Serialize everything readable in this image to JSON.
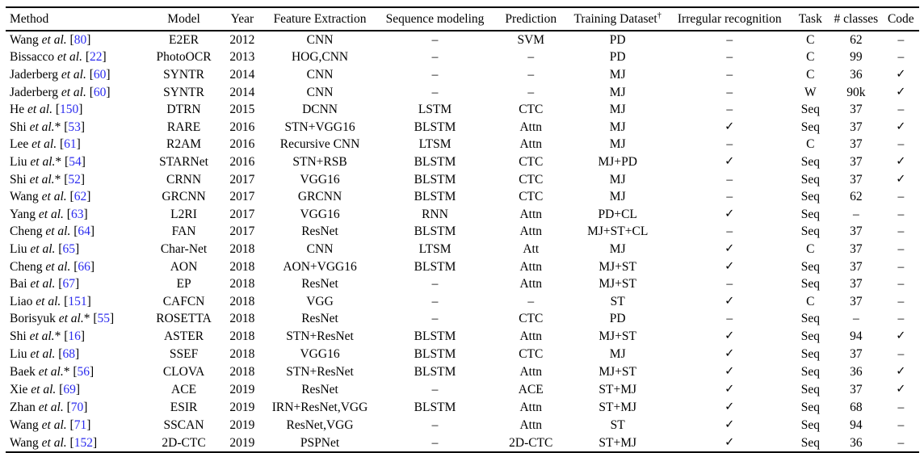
{
  "colors": {
    "citation": "#2b2bee",
    "text": "#000000",
    "background": "#ffffff"
  },
  "table": {
    "columns": [
      {
        "key": "method",
        "label": "Method"
      },
      {
        "key": "model",
        "label": "Model"
      },
      {
        "key": "year",
        "label": "Year"
      },
      {
        "key": "feature",
        "label": "Feature Extraction"
      },
      {
        "key": "seq",
        "label": "Sequence modeling"
      },
      {
        "key": "pred",
        "label": "Prediction"
      },
      {
        "key": "dataset",
        "label": "Training Dataset",
        "sup": "†"
      },
      {
        "key": "irregular",
        "label": "Irregular recognition"
      },
      {
        "key": "task",
        "label": "Task"
      },
      {
        "key": "classes",
        "label": "# classes"
      },
      {
        "key": "code",
        "label": "Code"
      }
    ],
    "rows": [
      {
        "author": "Wang",
        "etal": "et al.",
        "star": "",
        "ref": "80",
        "model": "E2ER",
        "year": "2012",
        "feature": "CNN",
        "seq": "–",
        "pred": "SVM",
        "dataset": "PD",
        "irregular": "–",
        "task": "C",
        "classes": "62",
        "code": "–"
      },
      {
        "author": "Bissacco",
        "etal": "et al.",
        "star": "",
        "ref": "22",
        "model": "PhotoOCR",
        "year": "2013",
        "feature": "HOG,CNN",
        "seq": "–",
        "pred": "–",
        "dataset": "PD",
        "irregular": "–",
        "task": "C",
        "classes": "99",
        "code": "–"
      },
      {
        "author": "Jaderberg",
        "etal": "et al.",
        "star": "",
        "ref": "60",
        "model": "SYNTR",
        "year": "2014",
        "feature": "CNN",
        "seq": "–",
        "pred": "–",
        "dataset": "MJ",
        "irregular": "–",
        "task": "C",
        "classes": "36",
        "code": "✓"
      },
      {
        "author": "Jaderberg",
        "etal": "et al.",
        "star": "",
        "ref": "60",
        "model": "SYNTR",
        "year": "2014",
        "feature": "CNN",
        "seq": "–",
        "pred": "–",
        "dataset": "MJ",
        "irregular": "–",
        "task": "W",
        "classes": "90k",
        "code": "✓"
      },
      {
        "author": "He",
        "etal": "et al.",
        "star": "",
        "ref": "150",
        "model": "DTRN",
        "year": "2015",
        "feature": "DCNN",
        "seq": "LSTM",
        "pred": "CTC",
        "dataset": "MJ",
        "irregular": "–",
        "task": "Seq",
        "classes": "37",
        "code": "–"
      },
      {
        "author": "Shi",
        "etal": "et al.",
        "star": "*",
        "ref": "53",
        "model": "RARE",
        "year": "2016",
        "feature": "STN+VGG16",
        "seq": "BLSTM",
        "pred": "Attn",
        "dataset": "MJ",
        "irregular": "✓",
        "task": "Seq",
        "classes": "37",
        "code": "✓"
      },
      {
        "author": "Lee",
        "etal": "et al.",
        "star": "",
        "ref": "61",
        "model": "R2AM",
        "year": "2016",
        "feature": "Recursive CNN",
        "seq": "LTSM",
        "pred": "Attn",
        "dataset": "MJ",
        "irregular": "–",
        "task": "C",
        "classes": "37",
        "code": "–"
      },
      {
        "author": "Liu",
        "etal": "et al.",
        "star": "*",
        "ref": "54",
        "model": "STARNet",
        "year": "2016",
        "feature": "STN+RSB",
        "seq": "BLSTM",
        "pred": "CTC",
        "dataset": "MJ+PD",
        "irregular": "✓",
        "task": "Seq",
        "classes": "37",
        "code": "✓"
      },
      {
        "author": "Shi",
        "etal": "et al.",
        "star": "*",
        "ref": "52",
        "model": "CRNN",
        "year": "2017",
        "feature": "VGG16",
        "seq": "BLSTM",
        "pred": "CTC",
        "dataset": "MJ",
        "irregular": "–",
        "task": "Seq",
        "classes": "37",
        "code": "✓"
      },
      {
        "author": "Wang",
        "etal": "et al.",
        "star": "",
        "ref": "62",
        "model": "GRCNN",
        "year": "2017",
        "feature": "GRCNN",
        "seq": "BLSTM",
        "pred": "CTC",
        "dataset": "MJ",
        "irregular": "–",
        "task": "Seq",
        "classes": "62",
        "code": "–"
      },
      {
        "author": "Yang",
        "etal": "et al.",
        "star": "",
        "ref": "63",
        "model": "L2RI",
        "year": "2017",
        "feature": "VGG16",
        "seq": "RNN",
        "pred": "Attn",
        "dataset": "PD+CL",
        "irregular": "✓",
        "task": "Seq",
        "classes": "–",
        "code": "–"
      },
      {
        "author": "Cheng",
        "etal": "et al.",
        "star": "",
        "ref": "64",
        "model": "FAN",
        "year": "2017",
        "feature": "ResNet",
        "seq": "BLSTM",
        "pred": "Attn",
        "dataset": "MJ+ST+CL",
        "irregular": "–",
        "task": "Seq",
        "classes": "37",
        "code": "–"
      },
      {
        "author": "Liu",
        "etal": "et al.",
        "star": "",
        "ref": "65",
        "model": "Char-Net",
        "year": "2018",
        "feature": "CNN",
        "seq": "LTSM",
        "pred": "Att",
        "dataset": "MJ",
        "irregular": "✓",
        "task": "C",
        "classes": "37",
        "code": "–"
      },
      {
        "author": "Cheng",
        "etal": "et al.",
        "star": "",
        "ref": "66",
        "model": "AON",
        "year": "2018",
        "feature": "AON+VGG16",
        "seq": "BLSTM",
        "pred": "Attn",
        "dataset": "MJ+ST",
        "irregular": "✓",
        "task": "Seq",
        "classes": "37",
        "code": "–"
      },
      {
        "author": "Bai",
        "etal": "et al.",
        "star": "",
        "ref": "67",
        "model": "EP",
        "year": "2018",
        "feature": "ResNet",
        "seq": "–",
        "pred": "Attn",
        "dataset": "MJ+ST",
        "irregular": "–",
        "task": "Seq",
        "classes": "37",
        "code": "–"
      },
      {
        "author": "Liao",
        "etal": "et al.",
        "star": "",
        "ref": "151",
        "model": "CAFCN",
        "year": "2018",
        "feature": "VGG",
        "seq": "–",
        "pred": "–",
        "dataset": "ST",
        "irregular": "✓",
        "task": "C",
        "classes": "37",
        "code": "–"
      },
      {
        "author": "Borisyuk",
        "etal": "et al.",
        "star": "*",
        "ref": "55",
        "model": "ROSETTA",
        "year": "2018",
        "feature": "ResNet",
        "seq": "–",
        "pred": "CTC",
        "dataset": "PD",
        "irregular": "–",
        "task": "Seq",
        "classes": "–",
        "code": "–"
      },
      {
        "author": "Shi",
        "etal": "et al.",
        "star": "*",
        "ref": "16",
        "model": "ASTER",
        "year": "2018",
        "feature": "STN+ResNet",
        "seq": "BLSTM",
        "pred": "Attn",
        "dataset": "MJ+ST",
        "irregular": "✓",
        "task": "Seq",
        "classes": "94",
        "code": "✓"
      },
      {
        "author": "Liu",
        "etal": "et al.",
        "star": "",
        "ref": "68",
        "model": "SSEF",
        "year": "2018",
        "feature": "VGG16",
        "seq": "BLSTM",
        "pred": "CTC",
        "dataset": "MJ",
        "irregular": "✓",
        "task": "Seq",
        "classes": "37",
        "code": "–"
      },
      {
        "author": "Baek",
        "etal": "et al.",
        "star": "*",
        "ref": "56",
        "model": "CLOVA",
        "year": "2018",
        "feature": "STN+ResNet",
        "seq": "BLSTM",
        "pred": "Attn",
        "dataset": "MJ+ST",
        "irregular": "✓",
        "task": "Seq",
        "classes": "36",
        "code": "✓"
      },
      {
        "author": "Xie",
        "etal": "et al.",
        "star": "",
        "ref": "69",
        "model": "ACE",
        "year": "2019",
        "feature": "ResNet",
        "seq": "–",
        "pred": "ACE",
        "dataset": "ST+MJ",
        "irregular": "✓",
        "task": "Seq",
        "classes": "37",
        "code": "✓"
      },
      {
        "author": "Zhan",
        "etal": "et al.",
        "star": "",
        "ref": "70",
        "model": "ESIR",
        "year": "2019",
        "feature": "IRN+ResNet,VGG",
        "seq": "BLSTM",
        "pred": "Attn",
        "dataset": "ST+MJ",
        "irregular": "✓",
        "task": "Seq",
        "classes": "68",
        "code": "–"
      },
      {
        "author": "Wang",
        "etal": "et al.",
        "star": "",
        "ref": "71",
        "model": "SSCAN",
        "year": "2019",
        "feature": "ResNet,VGG",
        "seq": "–",
        "pred": "Attn",
        "dataset": "ST",
        "irregular": "✓",
        "task": "Seq",
        "classes": "94",
        "code": "–"
      },
      {
        "author": "Wang",
        "etal": "et al.",
        "star": "",
        "ref": "152",
        "model": "2D-CTC",
        "year": "2019",
        "feature": "PSPNet",
        "seq": "–",
        "pred": "2D-CTC",
        "dataset": "ST+MJ",
        "irregular": "✓",
        "task": "Seq",
        "classes": "36",
        "code": "–"
      }
    ]
  }
}
